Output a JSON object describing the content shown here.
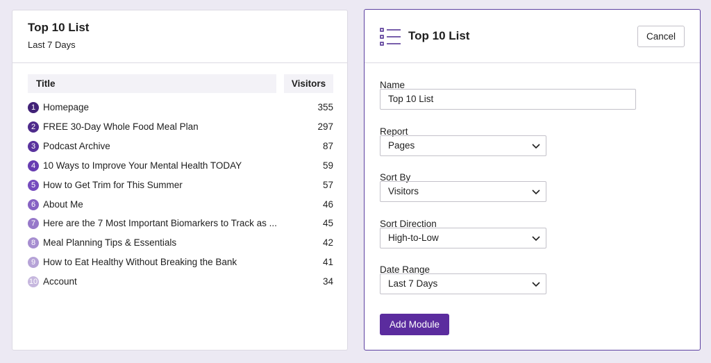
{
  "left_panel": {
    "title": "Top 10 List",
    "subtitle": "Last 7 Days",
    "table": {
      "columns": [
        "Title",
        "Visitors"
      ],
      "rows": [
        {
          "rank": 1,
          "title": "Homepage",
          "visitors": 355
        },
        {
          "rank": 2,
          "title": "FREE 30-Day Whole Food Meal Plan",
          "visitors": 297
        },
        {
          "rank": 3,
          "title": "Podcast Archive",
          "visitors": 87
        },
        {
          "rank": 4,
          "title": "10 Ways to Improve Your Mental Health TODAY",
          "visitors": 59
        },
        {
          "rank": 5,
          "title": "How to Get Trim for This Summer",
          "visitors": 57
        },
        {
          "rank": 6,
          "title": "About Me",
          "visitors": 46
        },
        {
          "rank": 7,
          "title": "Here are the 7 Most Important Biomarkers to Track as ...",
          "visitors": 45
        },
        {
          "rank": 8,
          "title": "Meal Planning Tips & Essentials",
          "visitors": 42
        },
        {
          "rank": 9,
          "title": "How to Eat Healthy Without Breaking the Bank",
          "visitors": 41
        },
        {
          "rank": 10,
          "title": "Account",
          "visitors": 34
        }
      ]
    }
  },
  "right_panel": {
    "title": "Top 10 List",
    "cancel_button": "Cancel",
    "fields": [
      {
        "label": "Name",
        "value": "Top 10 List"
      },
      {
        "label": "Report",
        "value": "Pages"
      },
      {
        "label": "Sort By",
        "value": "Visitors"
      },
      {
        "label": "Sort Direction",
        "value": "High-to-Low"
      },
      {
        "label": "Date Range",
        "value": "Last 7 Days"
      }
    ],
    "submit_button": "Add Module"
  }
}
